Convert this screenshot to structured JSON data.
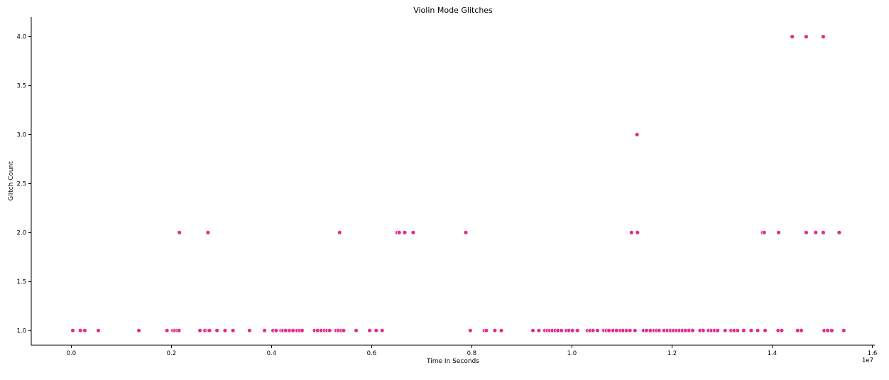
{
  "chart_data": {
    "type": "scatter",
    "title": "Violin Mode Glitches",
    "xlabel": "Time In Seconds",
    "ylabel": "Glitch Count",
    "x_offset_text": "1e7",
    "xlim": [
      -0.08,
      1.605
    ],
    "ylim": [
      0.85,
      4.2
    ],
    "x_ticks": [
      0.0,
      0.2,
      0.4,
      0.6,
      0.8,
      1.0,
      1.2,
      1.4,
      1.6
    ],
    "x_tick_labels": [
      "0.0",
      "0.2",
      "0.4",
      "0.6",
      "0.8",
      "1.0",
      "1.2",
      "1.4",
      "1.6"
    ],
    "y_ticks": [
      1.0,
      1.5,
      2.0,
      2.5,
      3.0,
      3.5,
      4.0
    ],
    "y_tick_labels": [
      "1.0",
      "1.5",
      "2.0",
      "2.5",
      "3.0",
      "3.5",
      "4.0"
    ],
    "grid": false,
    "marker_color": "#e7298a",
    "points": {
      "x": [
        0.003,
        0.018,
        0.027,
        0.054,
        0.135,
        0.191,
        0.203,
        0.207,
        0.211,
        0.215,
        0.257,
        0.267,
        0.273,
        0.276,
        0.291,
        0.307,
        0.323,
        0.356,
        0.386,
        0.403,
        0.409,
        0.419,
        0.423,
        0.428,
        0.436,
        0.443,
        0.451,
        0.456,
        0.461,
        0.486,
        0.492,
        0.499,
        0.506,
        0.511,
        0.516,
        0.529,
        0.533,
        0.539,
        0.544,
        0.569,
        0.596,
        0.609,
        0.621,
        0.797,
        0.825,
        0.829,
        0.846,
        0.859,
        0.922,
        0.934,
        0.946,
        0.951,
        0.956,
        0.961,
        0.967,
        0.972,
        0.979,
        0.989,
        0.994,
        1.001,
        1.011,
        1.031,
        1.036,
        1.042,
        1.051,
        1.064,
        1.069,
        1.074,
        1.082,
        1.089,
        1.097,
        1.102,
        1.109,
        1.116,
        1.126,
        1.143,
        1.149,
        1.157,
        1.164,
        1.169,
        1.174,
        1.184,
        1.191,
        1.197,
        1.203,
        1.209,
        1.215,
        1.221,
        1.227,
        1.234,
        1.241,
        1.256,
        1.262,
        1.273,
        1.279,
        1.285,
        1.291,
        1.306,
        1.318,
        1.324,
        1.331,
        1.343,
        1.358,
        1.371,
        1.386,
        1.412,
        1.419,
        1.451,
        1.458,
        1.504,
        1.511,
        1.519,
        1.543,
        0.216,
        0.273,
        0.536,
        0.651,
        0.655,
        0.666,
        0.683,
        0.788,
        1.119,
        1.131,
        1.381,
        1.384,
        1.413,
        1.468,
        1.487,
        1.502,
        1.534,
        1.13,
        1.44,
        1.468,
        1.502
      ],
      "y": [
        1,
        1,
        1,
        1,
        1,
        1,
        1,
        1,
        1,
        1,
        1,
        1,
        1,
        1,
        1,
        1,
        1,
        1,
        1,
        1,
        1,
        1,
        1,
        1,
        1,
        1,
        1,
        1,
        1,
        1,
        1,
        1,
        1,
        1,
        1,
        1,
        1,
        1,
        1,
        1,
        1,
        1,
        1,
        1,
        1,
        1,
        1,
        1,
        1,
        1,
        1,
        1,
        1,
        1,
        1,
        1,
        1,
        1,
        1,
        1,
        1,
        1,
        1,
        1,
        1,
        1,
        1,
        1,
        1,
        1,
        1,
        1,
        1,
        1,
        1,
        1,
        1,
        1,
        1,
        1,
        1,
        1,
        1,
        1,
        1,
        1,
        1,
        1,
        1,
        1,
        1,
        1,
        1,
        1,
        1,
        1,
        1,
        1,
        1,
        1,
        1,
        1,
        1,
        1,
        1,
        1,
        1,
        1,
        1,
        1,
        1,
        1,
        1,
        2,
        2,
        2,
        2,
        2,
        2,
        2,
        2,
        2,
        2,
        2,
        2,
        2,
        2,
        2,
        2,
        2,
        3,
        4,
        4,
        4
      ]
    }
  }
}
